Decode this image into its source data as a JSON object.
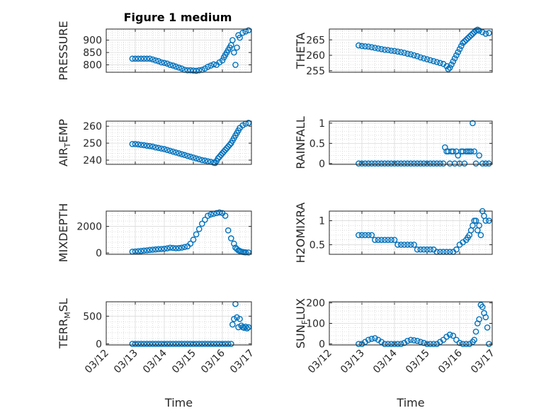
{
  "figure": {
    "title": "Figure 1 medium"
  },
  "colors": {
    "marker": "#0072BD",
    "axis": "#262626",
    "grid": "#c8c8c8",
    "background": "#ffffff"
  },
  "chart_data": [
    {
      "id": "pressure",
      "type": "scatter",
      "ylabel": "PRESSURE",
      "title": "Figure 1 medium",
      "yticks": [
        800,
        850,
        900
      ],
      "ylim": [
        770,
        945
      ],
      "xticks": [
        "03/12",
        "03/13",
        "03/14",
        "03/15",
        "03/16",
        "03/17"
      ],
      "xlim": [
        0,
        5
      ],
      "show_x_tick_labels": false,
      "xlabel": "",
      "series": [
        {
          "name": "",
          "x": [
            0.9,
            1.0,
            1.1,
            1.2,
            1.3,
            1.4,
            1.5,
            1.6,
            1.7,
            1.8,
            1.9,
            2.0,
            2.1,
            2.2,
            2.3,
            2.4,
            2.5,
            2.6,
            2.7,
            2.8,
            2.9,
            3.0,
            3.1,
            3.2,
            3.3,
            3.4,
            3.5,
            3.6,
            3.7,
            3.8,
            3.9,
            4.0,
            4.05,
            4.1,
            4.15,
            4.2,
            4.25,
            4.3,
            4.35,
            4.4,
            4.45,
            4.5,
            4.55,
            4.6,
            4.7,
            4.8,
            4.9
          ],
          "y": [
            825,
            825,
            825,
            825,
            825,
            825,
            825,
            822,
            818,
            815,
            810,
            808,
            805,
            800,
            797,
            793,
            789,
            785,
            780,
            778,
            778,
            777,
            776,
            778,
            780,
            785,
            792,
            797,
            802,
            800,
            810,
            818,
            830,
            840,
            850,
            860,
            870,
            880,
            900,
            850,
            800,
            870,
            920,
            910,
            930,
            935,
            940
          ]
        }
      ]
    },
    {
      "id": "theta",
      "type": "scatter",
      "ylabel": "THETA",
      "yticks": [
        255,
        260,
        265
      ],
      "ylim": [
        254.5,
        268.5
      ],
      "xticks": [
        "03/12",
        "03/13",
        "03/14",
        "03/15",
        "03/16",
        "03/17"
      ],
      "xlim": [
        0,
        5
      ],
      "show_x_tick_labels": false,
      "xlabel": "",
      "series": [
        {
          "name": "",
          "x": [
            0.9,
            1.0,
            1.1,
            1.2,
            1.3,
            1.4,
            1.5,
            1.6,
            1.7,
            1.8,
            1.9,
            2.0,
            2.1,
            2.2,
            2.3,
            2.4,
            2.5,
            2.6,
            2.7,
            2.8,
            2.9,
            3.0,
            3.1,
            3.2,
            3.3,
            3.4,
            3.5,
            3.6,
            3.65,
            3.7,
            3.75,
            3.8,
            3.85,
            3.9,
            3.95,
            4.0,
            4.05,
            4.1,
            4.15,
            4.2,
            4.25,
            4.3,
            4.35,
            4.4,
            4.45,
            4.5,
            4.55,
            4.6,
            4.7,
            4.8,
            4.9
          ],
          "y": [
            263.2,
            263.0,
            262.9,
            262.8,
            262.6,
            262.4,
            262.2,
            262.0,
            261.8,
            261.7,
            261.5,
            261.4,
            261.2,
            261.0,
            260.8,
            260.5,
            260.3,
            260.0,
            259.7,
            259.3,
            259.0,
            258.7,
            258.4,
            258.1,
            257.8,
            257.5,
            257.2,
            256.5,
            255.5,
            256.0,
            257.0,
            258.0,
            259.0,
            260.0,
            261.0,
            262.0,
            263.0,
            264.0,
            264.5,
            265.0,
            265.5,
            266.0,
            266.5,
            267.0,
            267.5,
            268.0,
            268.3,
            268.0,
            267.5,
            267.0,
            267.2
          ]
        }
      ]
    },
    {
      "id": "air-temp",
      "type": "scatter",
      "ylabel": "AIR_TEMP",
      "yticks": [
        240,
        250,
        260
      ],
      "ylim": [
        237.5,
        263
      ],
      "xticks": [
        "03/12",
        "03/13",
        "03/14",
        "03/15",
        "03/16",
        "03/17"
      ],
      "xlim": [
        0,
        5
      ],
      "show_x_tick_labels": false,
      "xlabel": "",
      "series": [
        {
          "name": "",
          "x": [
            0.9,
            1.0,
            1.1,
            1.2,
            1.3,
            1.4,
            1.5,
            1.6,
            1.7,
            1.8,
            1.9,
            2.0,
            2.1,
            2.2,
            2.3,
            2.4,
            2.5,
            2.6,
            2.7,
            2.8,
            2.9,
            3.0,
            3.1,
            3.2,
            3.3,
            3.4,
            3.5,
            3.6,
            3.7,
            3.75,
            3.8,
            3.85,
            3.9,
            3.95,
            4.0,
            4.05,
            4.1,
            4.15,
            4.2,
            4.25,
            4.3,
            4.35,
            4.4,
            4.45,
            4.5,
            4.55,
            4.6,
            4.7,
            4.8,
            4.9
          ],
          "y": [
            249.5,
            249.5,
            249.3,
            249.0,
            248.8,
            248.5,
            248.3,
            248.0,
            247.5,
            247.2,
            246.8,
            246.5,
            246.0,
            245.5,
            245.0,
            244.5,
            244.0,
            243.5,
            243.0,
            242.5,
            242.0,
            241.5,
            241.0,
            240.5,
            240.0,
            239.7,
            239.3,
            239.0,
            238.5,
            238.3,
            239.5,
            241.0,
            242.0,
            243.0,
            244.0,
            245.0,
            246.0,
            247.0,
            248.0,
            249.0,
            250.0,
            251.5,
            253.0,
            254.5,
            256.0,
            257.5,
            259.0,
            260.5,
            261.5,
            262.0
          ]
        }
      ]
    },
    {
      "id": "rainfall",
      "type": "scatter",
      "ylabel": "RAINFALL",
      "yticks": [
        0,
        0.5,
        1
      ],
      "ylim": [
        -0.02,
        1.05
      ],
      "xticks": [
        "03/12",
        "03/13",
        "03/14",
        "03/15",
        "03/16",
        "03/17"
      ],
      "xlim": [
        0,
        5
      ],
      "show_x_tick_labels": false,
      "xlabel": "",
      "series": [
        {
          "name": "",
          "x": [
            0.9,
            1.0,
            1.1,
            1.2,
            1.3,
            1.4,
            1.5,
            1.6,
            1.7,
            1.8,
            1.9,
            2.0,
            2.1,
            2.2,
            2.3,
            2.4,
            2.5,
            2.6,
            2.7,
            2.8,
            2.9,
            3.0,
            3.1,
            3.2,
            3.3,
            3.4,
            3.5,
            3.55,
            3.6,
            3.65,
            3.7,
            3.75,
            3.8,
            3.85,
            3.9,
            3.95,
            4.0,
            4.05,
            4.1,
            4.15,
            4.2,
            4.25,
            4.3,
            4.35,
            4.4,
            4.45,
            4.5,
            4.6,
            4.7,
            4.8,
            4.9
          ],
          "y": [
            0,
            0,
            0,
            0,
            0,
            0,
            0,
            0,
            0,
            0,
            0,
            0,
            0,
            0,
            0,
            0,
            0,
            0,
            0,
            0,
            0,
            0,
            0,
            0,
            0,
            0,
            0,
            0.4,
            0.3,
            0.3,
            0,
            0.3,
            0.3,
            0,
            0.3,
            0.2,
            0,
            0.3,
            0.3,
            0,
            0.3,
            0.3,
            0.3,
            0.3,
            1.0,
            0.3,
            0,
            0.2,
            0,
            0,
            0
          ]
        }
      ]
    },
    {
      "id": "mixdepth",
      "type": "scatter",
      "ylabel": "MIXDEPTH",
      "yticks": [
        0,
        2000
      ],
      "ylim": [
        -100,
        3150
      ],
      "xticks": [
        "03/12",
        "03/13",
        "03/14",
        "03/15",
        "03/16",
        "03/17"
      ],
      "xlim": [
        0,
        5
      ],
      "show_x_tick_labels": false,
      "xlabel": "",
      "series": [
        {
          "name": "",
          "x": [
            0.9,
            1.0,
            1.1,
            1.2,
            1.3,
            1.4,
            1.5,
            1.6,
            1.7,
            1.8,
            1.9,
            2.0,
            2.1,
            2.2,
            2.3,
            2.4,
            2.5,
            2.6,
            2.7,
            2.8,
            2.9,
            3.0,
            3.1,
            3.2,
            3.3,
            3.4,
            3.5,
            3.6,
            3.7,
            3.8,
            3.9,
            4.0,
            4.1,
            4.2,
            4.3,
            4.4,
            4.45,
            4.5,
            4.55,
            4.6,
            4.65,
            4.7,
            4.75,
            4.8,
            4.9
          ],
          "y": [
            100,
            110,
            130,
            150,
            180,
            200,
            230,
            250,
            270,
            290,
            300,
            320,
            350,
            400,
            380,
            360,
            370,
            400,
            450,
            500,
            700,
            1000,
            1400,
            1800,
            2200,
            2500,
            2800,
            2900,
            2950,
            3000,
            3050,
            3000,
            2800,
            1700,
            1100,
            700,
            400,
            300,
            200,
            150,
            100,
            80,
            60,
            50,
            40
          ]
        }
      ]
    },
    {
      "id": "h2omixra",
      "type": "scatter",
      "ylabel": "H2OMIXRA",
      "yticks": [
        0.5,
        1
      ],
      "ylim": [
        0.3,
        1.2
      ],
      "xticks": [
        "03/12",
        "03/13",
        "03/14",
        "03/15",
        "03/16",
        "03/17"
      ],
      "xlim": [
        0,
        5
      ],
      "show_x_tick_labels": false,
      "xlabel": "",
      "series": [
        {
          "name": "",
          "x": [
            0.9,
            1.0,
            1.1,
            1.2,
            1.3,
            1.4,
            1.5,
            1.6,
            1.7,
            1.8,
            1.9,
            2.0,
            2.1,
            2.2,
            2.3,
            2.4,
            2.5,
            2.6,
            2.7,
            2.8,
            2.9,
            3.0,
            3.1,
            3.2,
            3.3,
            3.4,
            3.5,
            3.6,
            3.7,
            3.8,
            3.9,
            4.0,
            4.1,
            4.2,
            4.25,
            4.3,
            4.35,
            4.4,
            4.45,
            4.5,
            4.55,
            4.6,
            4.65,
            4.7,
            4.75,
            4.8,
            4.9
          ],
          "y": [
            0.7,
            0.7,
            0.7,
            0.7,
            0.7,
            0.6,
            0.6,
            0.6,
            0.6,
            0.6,
            0.6,
            0.6,
            0.5,
            0.5,
            0.5,
            0.5,
            0.5,
            0.5,
            0.4,
            0.4,
            0.4,
            0.4,
            0.4,
            0.4,
            0.35,
            0.35,
            0.35,
            0.35,
            0.35,
            0.35,
            0.4,
            0.5,
            0.55,
            0.6,
            0.65,
            0.7,
            0.8,
            0.9,
            1.0,
            1.0,
            0.8,
            0.9,
            0.7,
            1.2,
            1.1,
            1.0,
            1.0
          ]
        }
      ]
    },
    {
      "id": "terr-msl",
      "type": "scatter",
      "ylabel": "TERR_MSL",
      "yticks": [
        0,
        500
      ],
      "ylim": [
        -20,
        760
      ],
      "xticks": [
        "03/12",
        "03/13",
        "03/14",
        "03/15",
        "03/16",
        "03/17"
      ],
      "xlim": [
        0,
        5
      ],
      "show_x_tick_labels": true,
      "xlabel": "Time",
      "series": [
        {
          "name": "",
          "x": [
            0.9,
            1.0,
            1.1,
            1.2,
            1.3,
            1.4,
            1.5,
            1.6,
            1.7,
            1.8,
            1.9,
            2.0,
            2.1,
            2.2,
            2.3,
            2.4,
            2.5,
            2.6,
            2.7,
            2.8,
            2.9,
            3.0,
            3.1,
            3.2,
            3.3,
            3.4,
            3.5,
            3.6,
            3.7,
            3.8,
            3.9,
            4.0,
            4.1,
            4.2,
            4.3,
            4.35,
            4.4,
            4.45,
            4.5,
            4.55,
            4.6,
            4.65,
            4.7,
            4.75,
            4.8,
            4.85,
            4.9
          ],
          "y": [
            0,
            0,
            0,
            0,
            0,
            0,
            0,
            0,
            0,
            0,
            0,
            0,
            0,
            0,
            0,
            0,
            0,
            0,
            0,
            0,
            0,
            0,
            0,
            0,
            0,
            0,
            0,
            0,
            0,
            0,
            0,
            0,
            0,
            0,
            0,
            350,
            450,
            720,
            480,
            300,
            450,
            330,
            300,
            290,
            310,
            280,
            300
          ]
        }
      ]
    },
    {
      "id": "sun-flux",
      "type": "scatter",
      "ylabel": "SUN_FLUX",
      "yticks": [
        0,
        100,
        200
      ],
      "ylim": [
        -5,
        205
      ],
      "xticks": [
        "03/12",
        "03/13",
        "03/14",
        "03/15",
        "03/16",
        "03/17"
      ],
      "xlim": [
        0,
        5
      ],
      "show_x_tick_labels": true,
      "xlabel": "Time",
      "series": [
        {
          "name": "",
          "x": [
            0.9,
            1.0,
            1.1,
            1.2,
            1.3,
            1.4,
            1.5,
            1.6,
            1.7,
            1.8,
            1.9,
            2.0,
            2.1,
            2.2,
            2.3,
            2.4,
            2.5,
            2.6,
            2.7,
            2.8,
            2.9,
            3.0,
            3.1,
            3.2,
            3.3,
            3.4,
            3.5,
            3.6,
            3.7,
            3.8,
            3.9,
            4.0,
            4.1,
            4.2,
            4.3,
            4.4,
            4.45,
            4.5,
            4.55,
            4.6,
            4.65,
            4.7,
            4.75,
            4.8,
            4.85,
            4.9
          ],
          "y": [
            0,
            0,
            10,
            20,
            25,
            28,
            20,
            10,
            0,
            0,
            0,
            0,
            0,
            0,
            5,
            15,
            20,
            18,
            15,
            10,
            5,
            0,
            0,
            0,
            0,
            10,
            20,
            35,
            45,
            40,
            20,
            5,
            0,
            0,
            0,
            10,
            20,
            60,
            100,
            120,
            190,
            180,
            150,
            130,
            80,
            0
          ]
        }
      ]
    }
  ]
}
